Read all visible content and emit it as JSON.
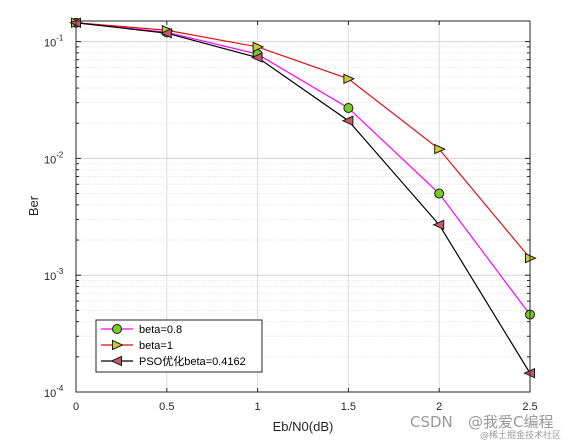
{
  "chart_data": {
    "type": "line",
    "xlabel": "Eb/N0(dB)",
    "ylabel": "Ber",
    "xlim": [
      0,
      2.5
    ],
    "ylim": [
      0.0001,
      0.15
    ],
    "yscale": "log",
    "grid": true,
    "legend_placement": "bottom-left",
    "x": [
      0,
      0.5,
      1,
      1.5,
      2,
      2.5
    ],
    "x_ticks": [
      "0",
      "0.5",
      "1",
      "1.5",
      "2",
      "2.5"
    ],
    "y_ticks": [
      {
        "base": "10",
        "exp": "-1"
      },
      {
        "base": "10",
        "exp": "-2"
      },
      {
        "base": "10",
        "exp": "-3"
      },
      {
        "base": "10",
        "exp": "-4"
      }
    ],
    "series": [
      {
        "name": "beta=0.8",
        "values": [
          0.145,
          0.12,
          0.078,
          0.027,
          0.005,
          0.00046
        ],
        "line_color": "#ff00ff",
        "marker": "circle",
        "marker_color": "#77cc22"
      },
      {
        "name": "beta=1",
        "values": [
          0.145,
          0.125,
          0.09,
          0.048,
          0.012,
          0.0014
        ],
        "line_color": "#dd1111",
        "marker": "triangle-right",
        "marker_color": "#cccc33"
      },
      {
        "name": "PSO优化beta=0.4162",
        "values": [
          0.145,
          0.118,
          0.073,
          0.021,
          0.0027,
          0.000145
        ],
        "line_color": "#000000",
        "marker": "triangle-left",
        "marker_color": "#cc5566"
      }
    ]
  },
  "watermark": {
    "csdn": "CSDN",
    "author": "@我爱C编程",
    "sub": "@稀土掘金技术社区"
  }
}
